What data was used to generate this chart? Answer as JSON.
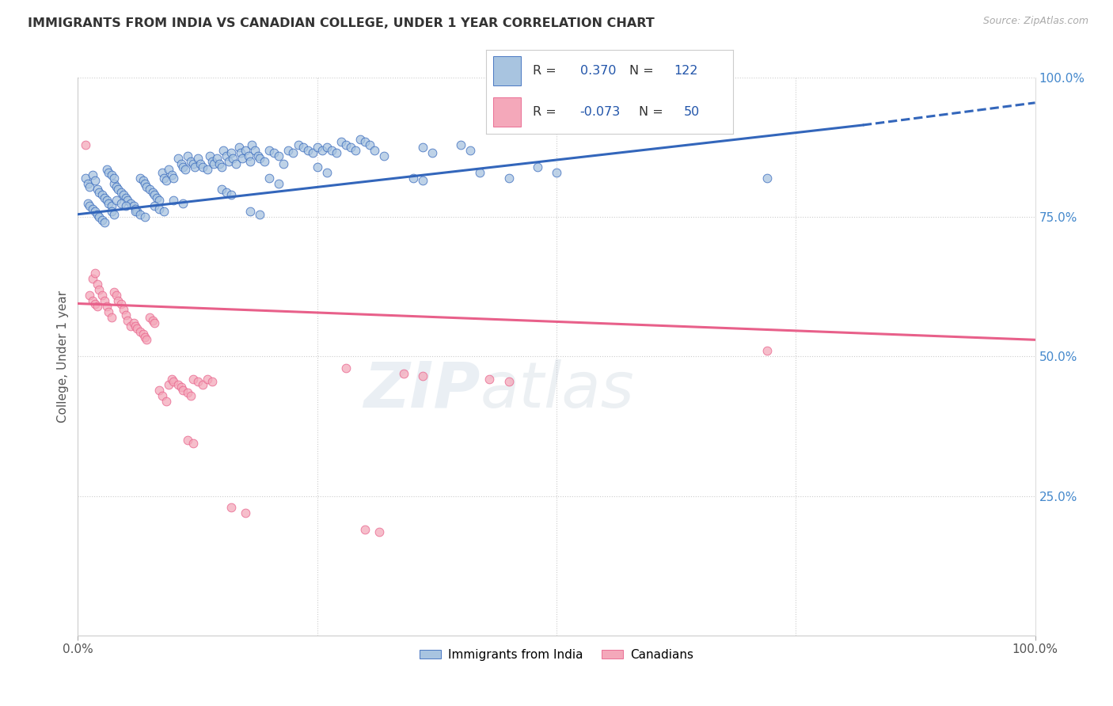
{
  "title": "IMMIGRANTS FROM INDIA VS CANADIAN COLLEGE, UNDER 1 YEAR CORRELATION CHART",
  "source": "Source: ZipAtlas.com",
  "ylabel": "College, Under 1 year",
  "xlim": [
    0.0,
    1.0
  ],
  "ylim": [
    0.0,
    1.0
  ],
  "watermark_zip": "ZIP",
  "watermark_atlas": "atlas",
  "blue_color": "#A8C4E0",
  "pink_color": "#F4A8BA",
  "line_blue": "#3366BB",
  "line_pink": "#E8608A",
  "blue_scatter": [
    [
      0.008,
      0.82
    ],
    [
      0.01,
      0.81
    ],
    [
      0.012,
      0.805
    ],
    [
      0.015,
      0.825
    ],
    [
      0.018,
      0.815
    ],
    [
      0.02,
      0.8
    ],
    [
      0.022,
      0.795
    ],
    [
      0.025,
      0.79
    ],
    [
      0.028,
      0.785
    ],
    [
      0.03,
      0.78
    ],
    [
      0.032,
      0.775
    ],
    [
      0.035,
      0.77
    ],
    [
      0.038,
      0.81
    ],
    [
      0.04,
      0.805
    ],
    [
      0.042,
      0.8
    ],
    [
      0.045,
      0.795
    ],
    [
      0.048,
      0.79
    ],
    [
      0.05,
      0.785
    ],
    [
      0.052,
      0.78
    ],
    [
      0.055,
      0.775
    ],
    [
      0.058,
      0.77
    ],
    [
      0.06,
      0.765
    ],
    [
      0.062,
      0.76
    ],
    [
      0.065,
      0.82
    ],
    [
      0.068,
      0.815
    ],
    [
      0.07,
      0.81
    ],
    [
      0.072,
      0.805
    ],
    [
      0.075,
      0.8
    ],
    [
      0.078,
      0.795
    ],
    [
      0.08,
      0.79
    ],
    [
      0.082,
      0.785
    ],
    [
      0.085,
      0.78
    ],
    [
      0.01,
      0.775
    ],
    [
      0.012,
      0.77
    ],
    [
      0.015,
      0.765
    ],
    [
      0.018,
      0.76
    ],
    [
      0.02,
      0.755
    ],
    [
      0.022,
      0.75
    ],
    [
      0.025,
      0.745
    ],
    [
      0.028,
      0.74
    ],
    [
      0.03,
      0.835
    ],
    [
      0.032,
      0.83
    ],
    [
      0.035,
      0.825
    ],
    [
      0.038,
      0.82
    ],
    [
      0.088,
      0.83
    ],
    [
      0.09,
      0.82
    ],
    [
      0.092,
      0.815
    ],
    [
      0.095,
      0.835
    ],
    [
      0.098,
      0.825
    ],
    [
      0.1,
      0.82
    ],
    [
      0.105,
      0.855
    ],
    [
      0.108,
      0.845
    ],
    [
      0.11,
      0.84
    ],
    [
      0.112,
      0.835
    ],
    [
      0.115,
      0.86
    ],
    [
      0.118,
      0.85
    ],
    [
      0.12,
      0.845
    ],
    [
      0.122,
      0.84
    ],
    [
      0.125,
      0.855
    ],
    [
      0.128,
      0.845
    ],
    [
      0.13,
      0.84
    ],
    [
      0.135,
      0.835
    ],
    [
      0.138,
      0.86
    ],
    [
      0.14,
      0.85
    ],
    [
      0.142,
      0.845
    ],
    [
      0.145,
      0.855
    ],
    [
      0.148,
      0.845
    ],
    [
      0.15,
      0.84
    ],
    [
      0.152,
      0.87
    ],
    [
      0.155,
      0.86
    ],
    [
      0.158,
      0.85
    ],
    [
      0.16,
      0.865
    ],
    [
      0.162,
      0.855
    ],
    [
      0.165,
      0.845
    ],
    [
      0.168,
      0.875
    ],
    [
      0.17,
      0.865
    ],
    [
      0.172,
      0.855
    ],
    [
      0.175,
      0.87
    ],
    [
      0.178,
      0.86
    ],
    [
      0.18,
      0.85
    ],
    [
      0.182,
      0.88
    ],
    [
      0.185,
      0.87
    ],
    [
      0.188,
      0.86
    ],
    [
      0.19,
      0.855
    ],
    [
      0.195,
      0.85
    ],
    [
      0.2,
      0.87
    ],
    [
      0.205,
      0.865
    ],
    [
      0.21,
      0.86
    ],
    [
      0.215,
      0.845
    ],
    [
      0.22,
      0.87
    ],
    [
      0.225,
      0.865
    ],
    [
      0.23,
      0.88
    ],
    [
      0.235,
      0.875
    ],
    [
      0.24,
      0.87
    ],
    [
      0.245,
      0.865
    ],
    [
      0.25,
      0.875
    ],
    [
      0.255,
      0.87
    ],
    [
      0.26,
      0.875
    ],
    [
      0.265,
      0.87
    ],
    [
      0.27,
      0.865
    ],
    [
      0.275,
      0.885
    ],
    [
      0.28,
      0.88
    ],
    [
      0.285,
      0.875
    ],
    [
      0.29,
      0.87
    ],
    [
      0.295,
      0.89
    ],
    [
      0.3,
      0.885
    ],
    [
      0.305,
      0.88
    ],
    [
      0.06,
      0.76
    ],
    [
      0.065,
      0.755
    ],
    [
      0.07,
      0.75
    ],
    [
      0.04,
      0.78
    ],
    [
      0.045,
      0.775
    ],
    [
      0.05,
      0.77
    ],
    [
      0.08,
      0.77
    ],
    [
      0.085,
      0.765
    ],
    [
      0.09,
      0.76
    ],
    [
      0.035,
      0.76
    ],
    [
      0.038,
      0.755
    ],
    [
      0.15,
      0.8
    ],
    [
      0.155,
      0.795
    ],
    [
      0.16,
      0.79
    ],
    [
      0.2,
      0.82
    ],
    [
      0.21,
      0.81
    ],
    [
      0.25,
      0.84
    ],
    [
      0.26,
      0.83
    ],
    [
      0.31,
      0.87
    ],
    [
      0.32,
      0.86
    ],
    [
      0.36,
      0.875
    ],
    [
      0.37,
      0.865
    ],
    [
      0.4,
      0.88
    ],
    [
      0.41,
      0.87
    ],
    [
      0.35,
      0.82
    ],
    [
      0.36,
      0.815
    ],
    [
      0.42,
      0.83
    ],
    [
      0.45,
      0.82
    ],
    [
      0.48,
      0.84
    ],
    [
      0.5,
      0.83
    ],
    [
      0.18,
      0.76
    ],
    [
      0.19,
      0.755
    ],
    [
      0.1,
      0.78
    ],
    [
      0.11,
      0.775
    ],
    [
      0.72,
      0.82
    ]
  ],
  "pink_scatter": [
    [
      0.008,
      0.88
    ],
    [
      0.012,
      0.61
    ],
    [
      0.015,
      0.64
    ],
    [
      0.018,
      0.65
    ],
    [
      0.02,
      0.63
    ],
    [
      0.022,
      0.62
    ],
    [
      0.025,
      0.61
    ],
    [
      0.028,
      0.6
    ],
    [
      0.03,
      0.59
    ],
    [
      0.032,
      0.58
    ],
    [
      0.035,
      0.57
    ],
    [
      0.038,
      0.615
    ],
    [
      0.04,
      0.61
    ],
    [
      0.042,
      0.6
    ],
    [
      0.045,
      0.595
    ],
    [
      0.048,
      0.585
    ],
    [
      0.05,
      0.575
    ],
    [
      0.052,
      0.565
    ],
    [
      0.055,
      0.555
    ],
    [
      0.058,
      0.56
    ],
    [
      0.06,
      0.555
    ],
    [
      0.062,
      0.55
    ],
    [
      0.065,
      0.545
    ],
    [
      0.068,
      0.54
    ],
    [
      0.07,
      0.535
    ],
    [
      0.072,
      0.53
    ],
    [
      0.075,
      0.57
    ],
    [
      0.078,
      0.565
    ],
    [
      0.08,
      0.56
    ],
    [
      0.015,
      0.6
    ],
    [
      0.018,
      0.595
    ],
    [
      0.02,
      0.59
    ],
    [
      0.085,
      0.44
    ],
    [
      0.088,
      0.43
    ],
    [
      0.092,
      0.42
    ],
    [
      0.095,
      0.45
    ],
    [
      0.098,
      0.46
    ],
    [
      0.1,
      0.455
    ],
    [
      0.105,
      0.45
    ],
    [
      0.108,
      0.445
    ],
    [
      0.11,
      0.44
    ],
    [
      0.115,
      0.435
    ],
    [
      0.118,
      0.43
    ],
    [
      0.12,
      0.46
    ],
    [
      0.125,
      0.455
    ],
    [
      0.13,
      0.45
    ],
    [
      0.135,
      0.46
    ],
    [
      0.14,
      0.455
    ],
    [
      0.28,
      0.48
    ],
    [
      0.34,
      0.47
    ],
    [
      0.36,
      0.465
    ],
    [
      0.43,
      0.46
    ],
    [
      0.45,
      0.455
    ],
    [
      0.72,
      0.51
    ],
    [
      0.115,
      0.35
    ],
    [
      0.12,
      0.345
    ],
    [
      0.16,
      0.23
    ],
    [
      0.175,
      0.22
    ],
    [
      0.3,
      0.19
    ],
    [
      0.315,
      0.185
    ]
  ],
  "blue_line": {
    "x0": 0.0,
    "y0": 0.755,
    "x1": 0.82,
    "y1": 0.915,
    "dash_x1": 1.0,
    "dash_y1": 0.955
  },
  "pink_line": {
    "x0": 0.0,
    "y0": 0.595,
    "x1": 1.0,
    "y1": 0.53
  },
  "grid_color": "#cccccc",
  "bg_color": "#ffffff",
  "title_color": "#333333",
  "right_axis_color": "#4488CC",
  "source_color": "#aaaaaa"
}
